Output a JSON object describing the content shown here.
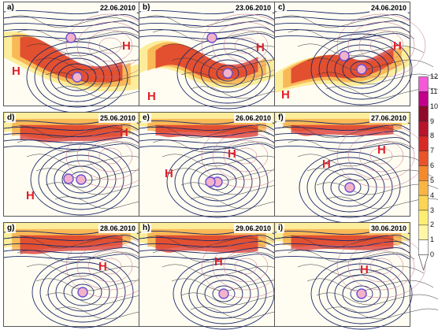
{
  "panels": [
    {
      "label": "a)",
      "date": "22.06.2010",
      "h": [
        "H",
        "H"
      ]
    },
    {
      "label": "b)",
      "date": "23.06.2010",
      "h": [
        "H",
        "H"
      ]
    },
    {
      "label": "c)",
      "date": "24.06.2010",
      "h": [
        "H",
        "H"
      ]
    },
    {
      "label": "d)",
      "date": "25.06.2010",
      "h": [
        "H",
        "H"
      ]
    },
    {
      "label": "e)",
      "date": "26.06.2010",
      "h": [
        "H",
        "H"
      ]
    },
    {
      "label": "f)",
      "date": "27.06.2010",
      "h": [
        "H",
        "H"
      ]
    },
    {
      "label": "g)",
      "date": "28.06.2010",
      "h": [
        "H"
      ]
    },
    {
      "label": "h)",
      "date": "29.06.2010",
      "h": [
        "H"
      ]
    },
    {
      "label": "i)",
      "date": "30.06.2010",
      "h": [
        "H"
      ]
    }
  ],
  "colorbar": {
    "ticks": [
      "12",
      "11",
      "10",
      "9",
      "8",
      "7",
      "6",
      "5",
      "4",
      "3",
      "2",
      "1",
      "0"
    ],
    "colors": [
      "#f25ad8",
      "#c2008b",
      "#8f0a2a",
      "#b8142a",
      "#d82a25",
      "#e9542a",
      "#f38a2e",
      "#f8b544",
      "#fbd553",
      "#fdee73",
      "#fff6a6",
      "#ffffff"
    ]
  },
  "colors": {
    "high_marker": "#e0202a",
    "low_marker_ring": "#6b4fd8"
  }
}
